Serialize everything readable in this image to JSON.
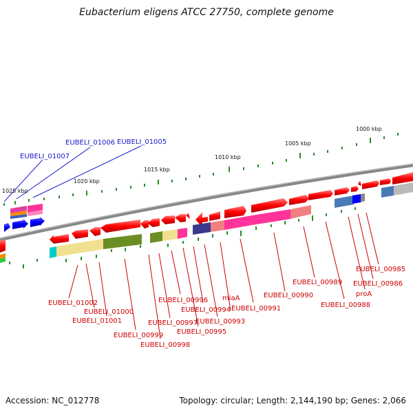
{
  "title": "Eubacterium eligens ATCC 27750, complete genome",
  "footer": {
    "accession": "Accession: NC_012778",
    "summary": "Topology: circular; Length: 2,144,190 bp; Genes: 2,066"
  },
  "scale_labels": [
    "1000 kbp",
    "1005 kbp",
    "1010 kbp",
    "1015 kbp",
    "1020 kbp",
    "1025 kbp"
  ],
  "labels": {
    "blue": [
      "EUBELI_01007",
      "EUBELI_01006",
      "EUBELI_01005"
    ],
    "red": [
      "EUBELI_01002",
      "EUBELI_01000",
      "EUBELI_01001",
      "EUBELI_00999",
      "EUBELI_00998",
      "EUBELI_00997",
      "EUBELI_00996",
      "EUBELI_00995",
      "EUBELI_00994",
      "EUBELI_00993",
      "miaA",
      "EUBELI_00991",
      "EUBELI_00990",
      "EUBELI_00989",
      "EUBELI_00988",
      "proA",
      "EUBELI_00986",
      "EUBELI_00985"
    ]
  },
  "colors": {
    "forward": "#ff0000",
    "reverse_blue": "#0000ff",
    "label_red": "#cc0000",
    "label_blue": "#1a1acc",
    "backbone": "#888888",
    "scale": "#2a8a2a"
  }
}
